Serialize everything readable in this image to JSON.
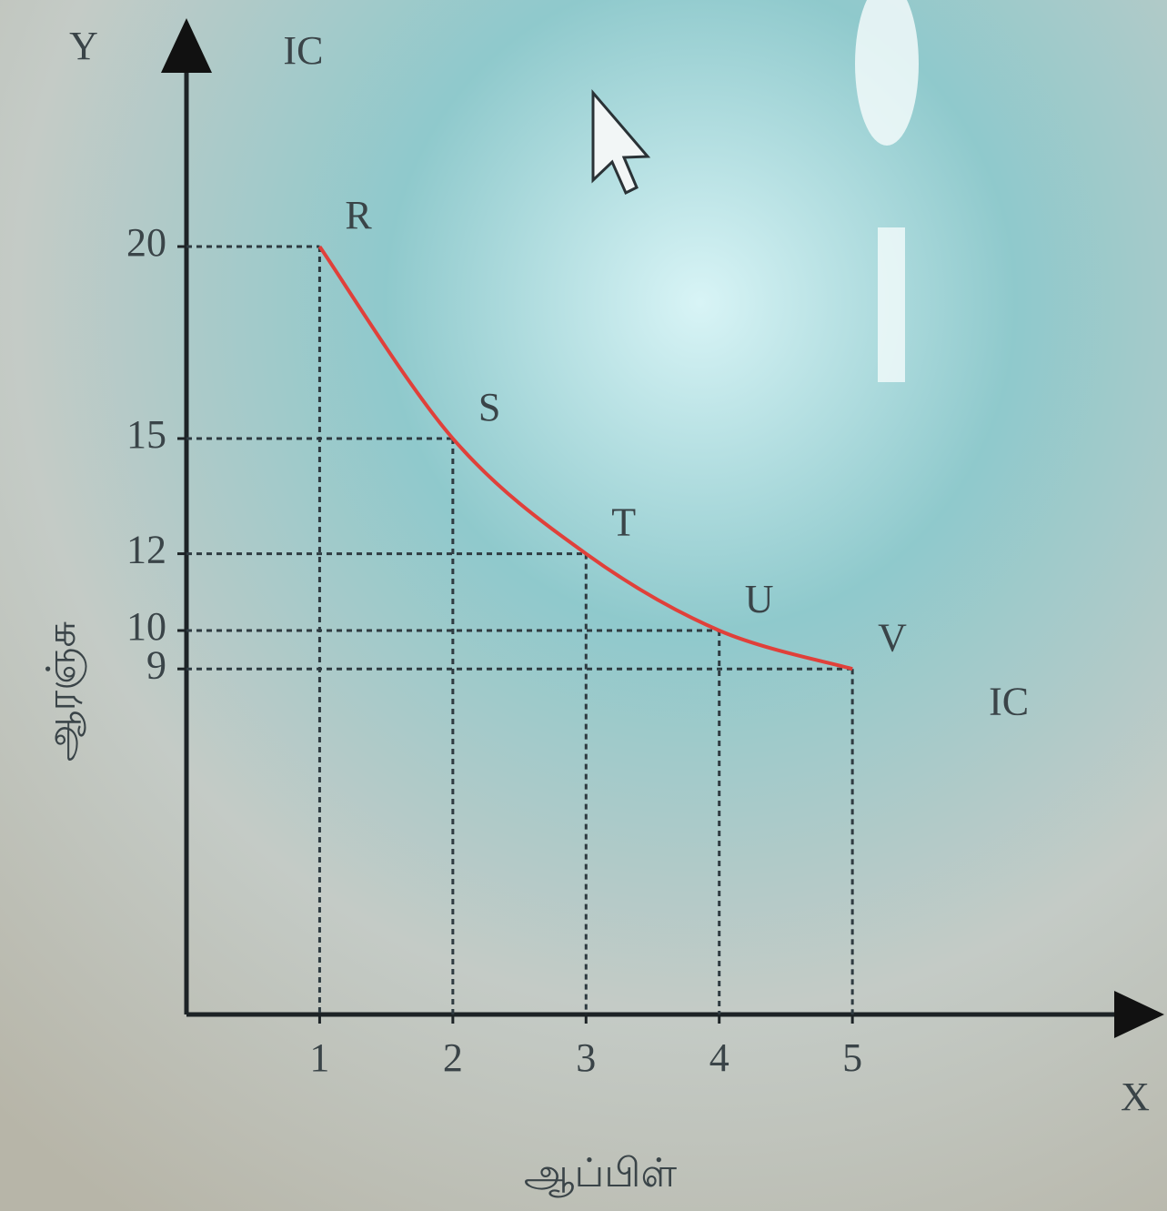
{
  "chart_data": {
    "type": "line",
    "x": [
      1,
      2,
      3,
      4,
      5
    ],
    "series": [
      {
        "name": "IC",
        "color": "#e0403a",
        "values": [
          20,
          15,
          12,
          10,
          9
        ]
      }
    ],
    "point_labels": [
      "R",
      "S",
      "T",
      "U",
      "V"
    ],
    "xlabel": "ஆப்பிள்",
    "ylabel": "ஆரஞ்சு",
    "x_axis_letter": "X",
    "y_axis_letter": "Y",
    "xlim": [
      0,
      7
    ],
    "ylim": [
      0,
      25
    ],
    "xticks": [
      1,
      2,
      3,
      4,
      5
    ],
    "yticks": [
      9,
      10,
      12,
      15,
      20
    ]
  }
}
